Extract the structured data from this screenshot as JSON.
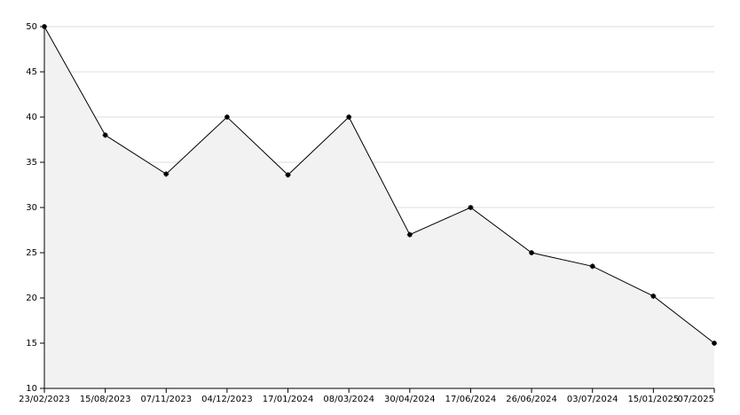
{
  "chart_data": {
    "type": "area",
    "categories": [
      "23/02/2023",
      "15/08/2023",
      "07/11/2023",
      "04/12/2023",
      "17/01/2024",
      "08/03/2024",
      "30/04/2024",
      "17/06/2024",
      "26/06/2024",
      "03/07/2024",
      "15/01/2025",
      "07/2025"
    ],
    "values": [
      50,
      38,
      33.7,
      40,
      33.6,
      40,
      27,
      30,
      25,
      23.5,
      20.2,
      15
    ],
    "color": "#000000",
    "fill": "#f2f2f2",
    "ylim": [
      10,
      50
    ],
    "yticks": [
      10,
      15,
      20,
      25,
      30,
      35,
      40,
      45,
      50
    ],
    "grid": true
  }
}
